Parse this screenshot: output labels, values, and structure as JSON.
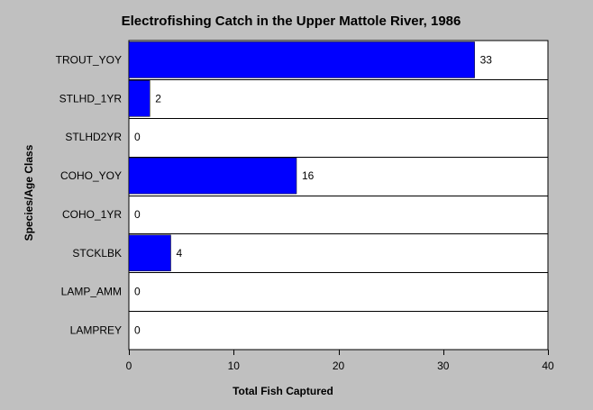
{
  "chart_data": {
    "type": "bar",
    "orientation": "horizontal",
    "title": "Electrofishing Catch in the Upper Mattole River, 1986",
    "xlabel": "Total Fish Captured",
    "ylabel": "Species/Age Class",
    "categories": [
      "TROUT_YOY",
      "STLHD_1YR",
      "STLHD2YR",
      "COHO_YOY",
      "COHO_1YR",
      "STCKLBK",
      "LAMP_AMM",
      "LAMPREY"
    ],
    "values": [
      33,
      2,
      0,
      16,
      0,
      4,
      0,
      0
    ],
    "value_labels": [
      "33",
      "2",
      "0",
      "16",
      "0",
      "4",
      "0",
      "0"
    ],
    "xlim": [
      0,
      40
    ],
    "xticks": [
      0,
      10,
      20,
      30,
      40
    ],
    "xtick_labels": [
      "0",
      "10",
      "20",
      "30",
      "40"
    ],
    "grid": "horizontal lines between categories",
    "bar_color": "#0000ff",
    "background_color": "#c0c0c0",
    "plot_background": "#ffffff"
  }
}
